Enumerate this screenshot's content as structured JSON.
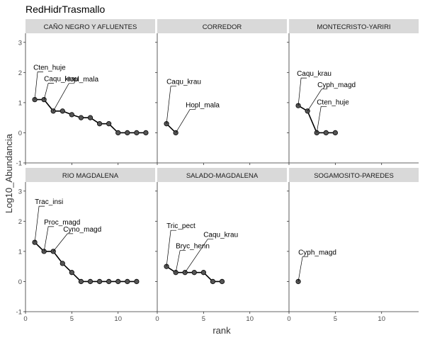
{
  "chart_data": {
    "type": "line",
    "title": "RedHidrTrasmallo",
    "xlabel": "rank",
    "ylabel": "Log10_Abundancia",
    "xlim": [
      0,
      14
    ],
    "ylim": [
      -1,
      3.3
    ],
    "xticks": [
      0,
      5,
      10
    ],
    "yticks": [
      -1,
      0,
      1,
      2,
      3
    ],
    "grid": false,
    "legend": "none",
    "panels": [
      {
        "name": "CAÑO NEGRO Y AFLUENTES",
        "x": [
          1,
          2,
          3,
          4,
          5,
          6,
          7,
          8,
          9,
          10,
          11,
          12,
          13
        ],
        "y": [
          1.1,
          1.1,
          0.72,
          0.72,
          0.6,
          0.5,
          0.5,
          0.3,
          0.3,
          0.0,
          0.0,
          0.0,
          0.0
        ],
        "labels": [
          {
            "text": "Cten_huje",
            "x": 1,
            "y": 1.1
          },
          {
            "text": "Hopl_mala",
            "x": 3,
            "y": 0.72
          },
          {
            "text": "Caqu_krau",
            "x": 2,
            "y": 1.1
          }
        ]
      },
      {
        "name": "CORREDOR",
        "x": [
          1,
          2
        ],
        "y": [
          0.3,
          0.0
        ],
        "labels": [
          {
            "text": "Caqu_krau",
            "x": 1,
            "y": 0.3
          },
          {
            "text": "Hopl_mala",
            "x": 2,
            "y": 0.0
          }
        ]
      },
      {
        "name": "MONTECRISTO-YARIRI",
        "x": [
          1,
          2,
          3,
          4,
          5
        ],
        "y": [
          0.9,
          0.72,
          0.0,
          0.0,
          0.0
        ],
        "labels": [
          {
            "text": "Caqu_krau",
            "x": 1,
            "y": 0.9
          },
          {
            "text": "Cyph_magd",
            "x": 2,
            "y": 0.72
          },
          {
            "text": "Cten_huje",
            "x": 3,
            "y": 0.0
          }
        ]
      },
      {
        "name": "RIO MAGDALENA",
        "x": [
          1,
          2,
          3,
          4,
          5,
          6,
          7,
          8,
          9,
          10,
          11,
          12
        ],
        "y": [
          1.3,
          1.0,
          1.0,
          0.6,
          0.3,
          0.0,
          0.0,
          0.0,
          0.0,
          0.0,
          0.0,
          0.0
        ],
        "labels": [
          {
            "text": "Trac_insi",
            "x": 1,
            "y": 1.3
          },
          {
            "text": "Proc_magd",
            "x": 2,
            "y": 1.0
          },
          {
            "text": "Cyno_magd",
            "x": 3,
            "y": 1.0
          }
        ]
      },
      {
        "name": "SALADO-MAGDALENA",
        "x": [
          1,
          2,
          3,
          4,
          5,
          6,
          7
        ],
        "y": [
          0.5,
          0.3,
          0.3,
          0.3,
          0.3,
          0.0,
          0.0
        ],
        "labels": [
          {
            "text": "Tric_pect",
            "x": 1,
            "y": 0.5
          },
          {
            "text": "Caqu_krau",
            "x": 3,
            "y": 0.3
          },
          {
            "text": "Bryc_henn",
            "x": 2,
            "y": 0.3
          }
        ]
      },
      {
        "name": "SOGAMOSITO-PAREDES",
        "x": [
          1
        ],
        "y": [
          0.0
        ],
        "labels": [
          {
            "text": "Cyph_magd",
            "x": 1,
            "y": 0.0
          }
        ]
      }
    ]
  }
}
